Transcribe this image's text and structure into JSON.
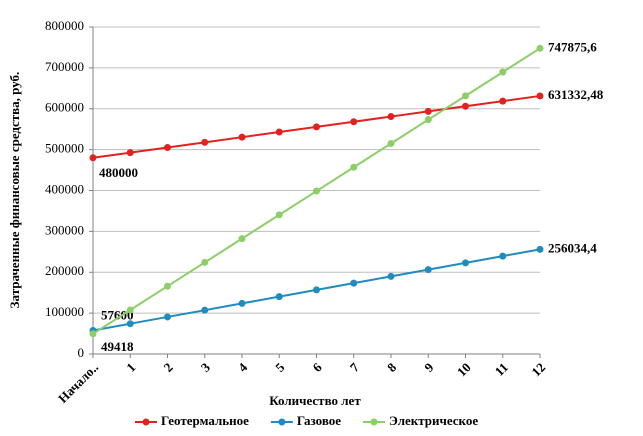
{
  "chart_data": {
    "type": "line",
    "y_label": "Затраченные финансовые средства, руб.",
    "x_label": "Количество лет",
    "categories": [
      "Начало..",
      "1",
      "2",
      "3",
      "4",
      "5",
      "6",
      "7",
      "8",
      "9",
      "10",
      "11",
      "12"
    ],
    "ylim": [
      0,
      800000
    ],
    "yticks": [
      0,
      100000,
      200000,
      300000,
      400000,
      500000,
      600000,
      700000,
      800000
    ],
    "legend": "bottom",
    "series": [
      {
        "name": "Геотермальное",
        "color": "#e3221f",
        "values": [
          480000,
          492611,
          505222,
          517833,
          530444,
          543056,
          555667,
          568278,
          580889,
          593500,
          606111,
          618722,
          631332.48
        ],
        "value_labels": [
          "480000",
          null,
          null,
          null,
          null,
          null,
          null,
          null,
          null,
          null,
          null,
          null,
          "631332,48"
        ]
      },
      {
        "name": "Газовое",
        "color": "#1f8cbd",
        "values": [
          57600,
          74136,
          90672,
          107209,
          123745,
          140281,
          156817,
          173353,
          189889,
          206426,
          222962,
          239498,
          256034.4
        ],
        "value_labels": [
          "57600",
          null,
          null,
          null,
          null,
          null,
          null,
          null,
          null,
          null,
          null,
          null,
          "256034,4"
        ]
      },
      {
        "name": "Электрическое",
        "color": "#8cce68",
        "values": [
          49418,
          107623,
          165827,
          224032,
          282237,
          340441,
          398646,
          456851,
          515055,
          573260,
          631465,
          689670,
          747875.6
        ],
        "value_labels": [
          "49418",
          null,
          null,
          null,
          null,
          null,
          null,
          null,
          null,
          null,
          null,
          null,
          "747875,6"
        ]
      }
    ]
  }
}
